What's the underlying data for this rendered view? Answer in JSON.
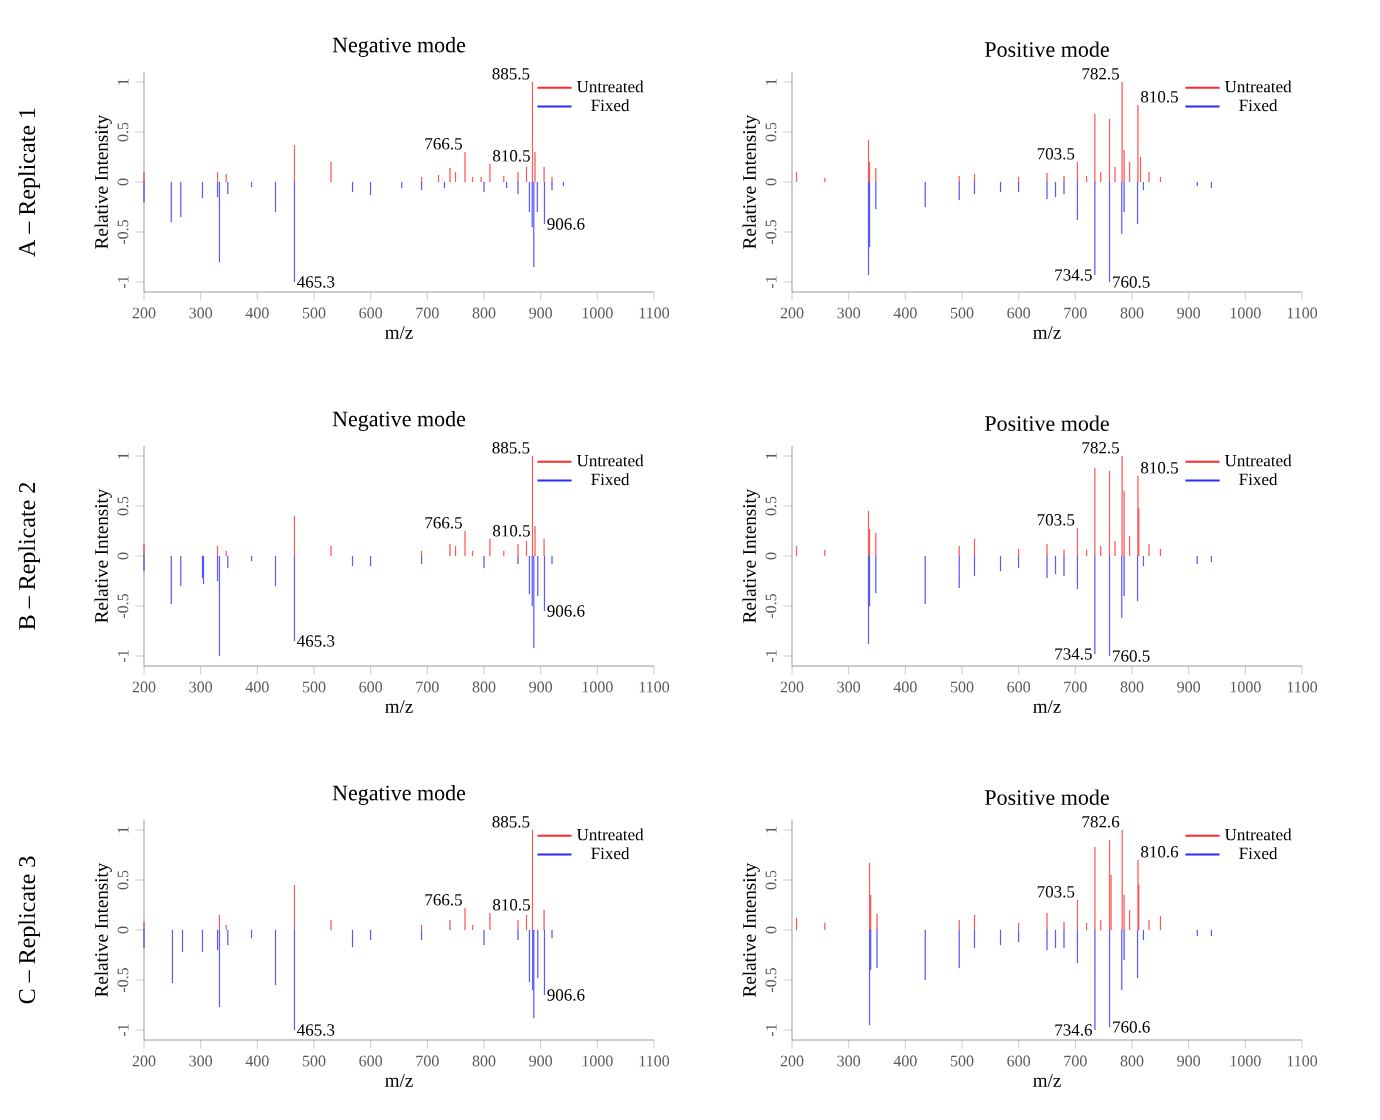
{
  "chart_data": [
    {
      "type": "bar",
      "title": "Negative mode",
      "xlabel": "m/z",
      "ylabel": "Relative Intensity",
      "xlim": [
        200,
        1100
      ],
      "ylim": [
        -1.1,
        1.1
      ],
      "xticks": [
        200,
        300,
        400,
        500,
        600,
        700,
        800,
        900,
        1000,
        1100
      ],
      "yticks": [
        -1,
        -0.5,
        0,
        0.5,
        1
      ],
      "legend": "top right",
      "series": [
        {
          "name": "Untreated",
          "color": "#ff2a2a",
          "x": [
            200,
            330,
            345,
            465.3,
            530,
            690,
            720,
            740,
            750,
            766.5,
            780,
            795,
            810.5,
            835,
            860,
            875,
            885.5,
            890,
            906,
            920
          ],
          "values": [
            0.1,
            0.1,
            0.08,
            0.37,
            0.2,
            0.05,
            0.07,
            0.14,
            0.1,
            0.3,
            0.05,
            0.05,
            0.18,
            0.06,
            0.1,
            0.15,
            1.0,
            0.3,
            0.15,
            0.05
          ]
        },
        {
          "name": "Fixed",
          "color": "#2a2aff",
          "x": [
            200,
            248,
            265,
            303,
            330,
            333,
            348,
            390,
            432,
            465.3,
            568,
            600,
            655,
            690,
            730,
            800,
            840,
            860,
            880,
            885,
            888,
            894,
            906.6,
            920,
            940
          ],
          "values": [
            -0.2,
            -0.4,
            -0.35,
            -0.16,
            -0.15,
            -0.8,
            -0.12,
            -0.05,
            -0.3,
            -1.0,
            -0.1,
            -0.13,
            -0.06,
            -0.08,
            -0.06,
            -0.1,
            -0.06,
            -0.12,
            -0.3,
            -0.45,
            -0.85,
            -0.3,
            -0.42,
            -0.08,
            -0.04
          ]
        }
      ],
      "annotations": [
        "A – Replicate 1",
        {
          "text": "766.5",
          "x": 766.5,
          "y": 0.3
        },
        {
          "text": "810.5",
          "x": 810.5,
          "y": 0.18
        },
        {
          "text": "885.5",
          "x": 885.5,
          "y": 1.0
        },
        {
          "text": "465.3",
          "x": 465.3,
          "y": -1.0
        },
        {
          "text": "906.6",
          "x": 906.6,
          "y": -0.42
        }
      ]
    },
    {
      "type": "bar",
      "title": "Positive mode",
      "xlabel": "m/z",
      "ylabel": "Relative Intensity",
      "xlim": [
        200,
        1100
      ],
      "ylim": [
        -1.1,
        1.1
      ],
      "xticks": [
        200,
        300,
        400,
        500,
        600,
        700,
        800,
        900,
        1000,
        1100
      ],
      "yticks": [
        -1,
        -0.5,
        0,
        0.5,
        1
      ],
      "legend": "top right",
      "series": [
        {
          "name": "Untreated",
          "color": "#ff2a2a",
          "x": [
            208,
            258,
            335,
            337,
            348,
            495,
            522,
            600,
            650,
            680,
            703.5,
            720,
            734.5,
            745,
            760.5,
            770,
            782.5,
            786,
            796,
            810.5,
            815,
            830,
            850
          ],
          "values": [
            0.1,
            0.04,
            0.42,
            0.2,
            0.14,
            0.06,
            0.08,
            0.05,
            0.09,
            0.06,
            0.2,
            0.06,
            0.68,
            0.1,
            0.63,
            0.15,
            1.0,
            0.32,
            0.2,
            0.77,
            0.25,
            0.1,
            0.05
          ]
        },
        {
          "name": "Fixed",
          "color": "#2a2aff",
          "x": [
            335,
            337,
            348,
            435,
            495,
            522,
            568,
            600,
            650,
            665,
            680,
            703.5,
            734.5,
            760.5,
            782,
            786,
            810,
            820,
            915,
            940
          ],
          "values": [
            -0.93,
            -0.65,
            -0.27,
            -0.25,
            -0.18,
            -0.12,
            -0.1,
            -0.1,
            -0.17,
            -0.15,
            -0.12,
            -0.38,
            -0.93,
            -1.0,
            -0.52,
            -0.3,
            -0.42,
            -0.08,
            -0.04,
            -0.06
          ]
        }
      ],
      "annotations": [
        {
          "text": "703.5",
          "x": 703.5,
          "y": 0.2
        },
        {
          "text": "782.5",
          "x": 782.5,
          "y": 1.0
        },
        {
          "text": "810.5",
          "x": 810.5,
          "y": 0.77
        },
        {
          "text": "734.5",
          "x": 734.5,
          "y": -0.93
        },
        {
          "text": "760.5",
          "x": 760.5,
          "y": -1.0
        }
      ]
    },
    {
      "type": "bar",
      "title": "Negative mode",
      "xlabel": "m/z",
      "ylabel": "Relative Intensity",
      "xlim": [
        200,
        1100
      ],
      "ylim": [
        -1.1,
        1.1
      ],
      "xticks": [
        200,
        300,
        400,
        500,
        600,
        700,
        800,
        900,
        1000,
        1100
      ],
      "yticks": [
        -1,
        -0.5,
        0,
        0.5,
        1
      ],
      "legend": "top right",
      "series": [
        {
          "name": "Untreated",
          "color": "#ff2a2a",
          "x": [
            200,
            330,
            345,
            465.3,
            530,
            690,
            740,
            750,
            766.5,
            780,
            810.5,
            835,
            860,
            875,
            885.5,
            890,
            906
          ],
          "values": [
            0.12,
            0.1,
            0.05,
            0.4,
            0.1,
            0.05,
            0.12,
            0.1,
            0.25,
            0.05,
            0.17,
            0.05,
            0.12,
            0.15,
            1.0,
            0.3,
            0.17
          ]
        },
        {
          "name": "Fixed",
          "color": "#2a2aff",
          "x": [
            200,
            248,
            265,
            303,
            305,
            330,
            333,
            348,
            390,
            432,
            465.3,
            568,
            600,
            690,
            800,
            860,
            880,
            885,
            888,
            895,
            906.6,
            920
          ],
          "values": [
            -0.15,
            -0.48,
            -0.3,
            -0.22,
            -0.28,
            -0.25,
            -1.0,
            -0.12,
            -0.05,
            -0.3,
            -0.85,
            -0.1,
            -0.1,
            -0.08,
            -0.12,
            -0.08,
            -0.38,
            -0.5,
            -0.92,
            -0.4,
            -0.55,
            -0.08
          ]
        }
      ],
      "annotations": [
        "B – Replicate 2",
        {
          "text": "766.5",
          "x": 766.5,
          "y": 0.25
        },
        {
          "text": "810.5",
          "x": 810.5,
          "y": 0.17
        },
        {
          "text": "885.5",
          "x": 885.5,
          "y": 1.0
        },
        {
          "text": "465.3",
          "x": 465.3,
          "y": -0.85
        },
        {
          "text": "906.6",
          "x": 906.6,
          "y": -0.55
        }
      ]
    },
    {
      "type": "bar",
      "title": "Positive mode",
      "xlabel": "m/z",
      "ylabel": "Relative Intensity",
      "xlim": [
        200,
        1100
      ],
      "ylim": [
        -1.1,
        1.1
      ],
      "xticks": [
        200,
        300,
        400,
        500,
        600,
        700,
        800,
        900,
        1000,
        1100
      ],
      "yticks": [
        -1,
        -0.5,
        0,
        0.5,
        1
      ],
      "legend": "top right",
      "series": [
        {
          "name": "Untreated",
          "color": "#ff2a2a",
          "x": [
            208,
            258,
            335,
            337,
            348,
            495,
            522,
            600,
            650,
            680,
            703.5,
            720,
            734.5,
            745,
            760.5,
            770,
            782.5,
            786,
            796,
            810.5,
            812,
            830,
            850
          ],
          "values": [
            0.1,
            0.06,
            0.45,
            0.27,
            0.23,
            0.1,
            0.17,
            0.07,
            0.12,
            0.06,
            0.28,
            0.06,
            0.88,
            0.1,
            0.85,
            0.15,
            1.0,
            0.65,
            0.2,
            0.8,
            0.48,
            0.12,
            0.07
          ]
        },
        {
          "name": "Fixed",
          "color": "#2a2aff",
          "x": [
            335,
            337,
            348,
            435,
            495,
            522,
            568,
            600,
            650,
            665,
            680,
            703.5,
            734.5,
            760.5,
            782,
            786,
            810,
            820,
            915,
            940
          ],
          "values": [
            -0.88,
            -0.5,
            -0.37,
            -0.48,
            -0.32,
            -0.2,
            -0.15,
            -0.12,
            -0.22,
            -0.18,
            -0.2,
            -0.33,
            -0.98,
            -1.0,
            -0.62,
            -0.4,
            -0.45,
            -0.1,
            -0.08,
            -0.06
          ]
        }
      ],
      "annotations": [
        {
          "text": "703.5",
          "x": 703.5,
          "y": 0.28
        },
        {
          "text": "782.5",
          "x": 782.5,
          "y": 1.0
        },
        {
          "text": "810.5",
          "x": 810.5,
          "y": 0.8
        },
        {
          "text": "734.5",
          "x": 734.5,
          "y": -0.98
        },
        {
          "text": "760.5",
          "x": 760.5,
          "y": -1.0
        }
      ]
    },
    {
      "type": "bar",
      "title": "Negative mode",
      "xlabel": "m/z",
      "ylabel": "Relative Intensity",
      "xlim": [
        200,
        1100
      ],
      "ylim": [
        -1.1,
        1.1
      ],
      "xticks": [
        200,
        300,
        400,
        500,
        600,
        700,
        800,
        900,
        1000,
        1100
      ],
      "yticks": [
        -1,
        -0.5,
        0,
        0.5,
        1
      ],
      "legend": "top right",
      "series": [
        {
          "name": "Untreated",
          "color": "#ff2a2a",
          "x": [
            200,
            333,
            345,
            465.3,
            530,
            690,
            740,
            766.5,
            780,
            810.5,
            860,
            875,
            885.5,
            906
          ],
          "values": [
            0.08,
            0.15,
            0.05,
            0.45,
            0.1,
            0.05,
            0.1,
            0.22,
            0.05,
            0.17,
            0.1,
            0.15,
            1.0,
            0.2
          ]
        },
        {
          "name": "Fixed",
          "color": "#2a2aff",
          "x": [
            200,
            250,
            268,
            303,
            330,
            333,
            348,
            390,
            432,
            465.3,
            568,
            600,
            690,
            800,
            860,
            880,
            886,
            888,
            895,
            906.6,
            920
          ],
          "values": [
            -0.18,
            -0.53,
            -0.22,
            -0.22,
            -0.2,
            -0.77,
            -0.15,
            -0.08,
            -0.55,
            -1.0,
            -0.17,
            -0.1,
            -0.1,
            -0.15,
            -0.1,
            -0.52,
            -0.6,
            -0.88,
            -0.48,
            -0.65,
            -0.08
          ]
        }
      ],
      "annotations": [
        "C – Replicate 3",
        {
          "text": "766.5",
          "x": 766.5,
          "y": 0.22
        },
        {
          "text": "810.5",
          "x": 810.5,
          "y": 0.17
        },
        {
          "text": "885.5",
          "x": 885.5,
          "y": 1.0
        },
        {
          "text": "465.3",
          "x": 465.3,
          "y": -1.0
        },
        {
          "text": "906.6",
          "x": 906.6,
          "y": -0.65
        }
      ]
    },
    {
      "type": "bar",
      "title": "Positive mode",
      "xlabel": "m/z",
      "ylabel": "Relative Intensity",
      "xlim": [
        200,
        1100
      ],
      "ylim": [
        -1.1,
        1.1
      ],
      "xticks": [
        200,
        300,
        400,
        500,
        600,
        700,
        800,
        900,
        1000,
        1100
      ],
      "yticks": [
        -1,
        -0.5,
        0,
        0.5,
        1
      ],
      "legend": "top right",
      "series": [
        {
          "name": "Untreated",
          "color": "#ff2a2a",
          "x": [
            208,
            258,
            337,
            339,
            350,
            495,
            522,
            600,
            650,
            680,
            703.5,
            720,
            734.6,
            745,
            760.6,
            763,
            782.6,
            786,
            796,
            810.6,
            812,
            830,
            850
          ],
          "values": [
            0.12,
            0.07,
            0.67,
            0.35,
            0.16,
            0.1,
            0.15,
            0.07,
            0.17,
            0.08,
            0.3,
            0.07,
            0.83,
            0.1,
            0.9,
            0.55,
            1.0,
            0.35,
            0.2,
            0.7,
            0.45,
            0.1,
            0.14
          ]
        },
        {
          "name": "Fixed",
          "color": "#2a2aff",
          "x": [
            337,
            339,
            350,
            435,
            495,
            522,
            568,
            600,
            650,
            665,
            680,
            703.5,
            734.6,
            760.6,
            782,
            786,
            810,
            820,
            915,
            940
          ],
          "values": [
            -0.95,
            -0.4,
            -0.38,
            -0.5,
            -0.38,
            -0.18,
            -0.15,
            -0.12,
            -0.2,
            -0.18,
            -0.18,
            -0.33,
            -1.0,
            -0.97,
            -0.6,
            -0.3,
            -0.48,
            -0.1,
            -0.06,
            -0.06
          ]
        }
      ],
      "annotations": [
        {
          "text": "703.5",
          "x": 703.5,
          "y": 0.3
        },
        {
          "text": "782.6",
          "x": 782.6,
          "y": 1.0
        },
        {
          "text": "810.6",
          "x": 810.6,
          "y": 0.7
        },
        {
          "text": "734.6",
          "x": 734.6,
          "y": -1.0
        },
        {
          "text": "760.6",
          "x": 760.6,
          "y": -0.97
        }
      ]
    }
  ]
}
